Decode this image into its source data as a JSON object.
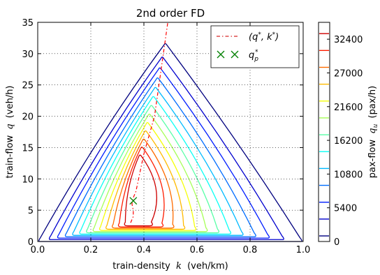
{
  "chart_data": {
    "type": "contour",
    "title": "2nd order FD",
    "xlabel": "train-density",
    "xlabel_symbol": "k",
    "xlabel_unit": "(veh/km)",
    "ylabel": "train-flow",
    "ylabel_symbol": "q",
    "ylabel_unit": "(veh/h)",
    "xlim": [
      0,
      1
    ],
    "ylim": [
      0,
      35
    ],
    "xticks": [
      "0.0",
      "0.2",
      "0.4",
      "0.6",
      "0.8",
      "1.0"
    ],
    "yticks": [
      "0",
      "5",
      "10",
      "15",
      "20",
      "25",
      "30",
      "35"
    ],
    "grid": true,
    "colorbar": {
      "label": "pax-flow",
      "label_symbol": "q",
      "label_subscript": "u",
      "label_unit": "(pax/h)",
      "min": 0,
      "max": 35100,
      "ticks": [
        "0",
        "5400",
        "10800",
        "16200",
        "21600",
        "27000",
        "32400"
      ]
    },
    "contour_levels": [
      0,
      2700,
      5400,
      8100,
      10800,
      13500,
      16200,
      18900,
      21600,
      24300,
      27000,
      29700,
      32400
    ],
    "legend": {
      "position": "top-right",
      "entries": [
        {
          "label": "(q*, k*)",
          "label_tex": "(q",
          "sup1": "*",
          "mid": ", k",
          "sup2": "*",
          "tail": ")",
          "style": "dash-dot",
          "color": "#d62728"
        },
        {
          "label": "q_p*",
          "label_tex": "q",
          "sub": "p",
          "sup": "*",
          "style": "x-marker",
          "color": "#008000"
        }
      ]
    },
    "optimum_curve": {
      "color": "#ff0000",
      "points": [
        [
          0.35,
          3
        ],
        [
          0.36,
          4
        ],
        [
          0.36,
          5
        ],
        [
          0.355,
          6
        ],
        [
          0.36,
          7
        ],
        [
          0.37,
          8
        ],
        [
          0.375,
          9
        ],
        [
          0.38,
          10
        ],
        [
          0.39,
          12
        ],
        [
          0.4,
          14
        ],
        [
          0.42,
          17
        ],
        [
          0.44,
          20
        ],
        [
          0.45,
          23
        ],
        [
          0.46,
          26
        ],
        [
          0.47,
          29
        ],
        [
          0.48,
          32
        ],
        [
          0.49,
          35
        ]
      ]
    },
    "marker": {
      "x": 0.36,
      "y": 6.5,
      "color": "#008000"
    }
  }
}
